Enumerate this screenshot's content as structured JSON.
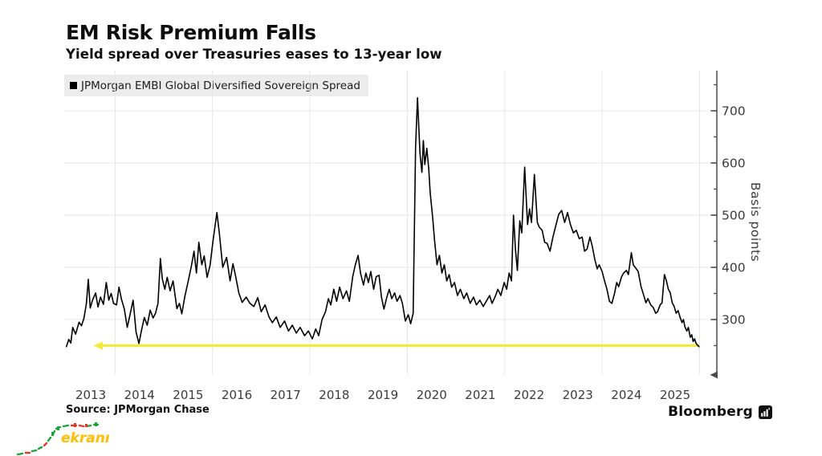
{
  "header": {
    "title": "EM Risk Premium Falls",
    "subtitle": "Yield spread over Treasuries eases to 13-year low"
  },
  "legend": {
    "label": "JPMorgan EMBI Global Diversified Sovereign Spread",
    "marker_color": "#000000",
    "background": "#ececec"
  },
  "footer": {
    "source": "Source: JPMorgan Chase",
    "brand": "Bloomberg"
  },
  "watermark": {
    "text": "ekranı",
    "text_color": "#fdc010",
    "doodle_up_color": "#1fa23c",
    "doodle_down_color": "#e03a2f"
  },
  "chart_data": {
    "type": "line",
    "title": "EM Risk Premium Falls",
    "subtitle": "Yield spread over Treasuries eases to 13-year low",
    "ylabel": "Basis points",
    "xlabel": "",
    "x_unit": "year",
    "xlim": [
      2013.0,
      2026.35
    ],
    "ylim": [
      195,
      775
    ],
    "yticks": [
      300,
      400,
      500,
      600,
      700
    ],
    "yticks_minor": [
      250,
      350,
      450,
      550,
      650,
      750
    ],
    "xticks_labels": [
      "2013",
      "2014",
      "2015",
      "2016",
      "2017",
      "2018",
      "2019",
      "2020",
      "2021",
      "2022",
      "2023",
      "2024",
      "2025"
    ],
    "grid": {
      "color": "#e6e6e6",
      "h_values": [
        300,
        400,
        500,
        600,
        700
      ],
      "v_years": [
        2014,
        2016,
        2018,
        2020,
        2022,
        2024,
        2026
      ]
    },
    "axis_color": "#4a4a4a",
    "tick_label_color": "#3a3a3a",
    "annotation_arrow": {
      "meaning": "spread back down to 13-year-low level",
      "y": 250,
      "x_from": 2026.0,
      "x_to": 2013.55,
      "color": "#f2e93f"
    },
    "series": [
      {
        "name": "JPMorgan EMBI Global Diversified Sovereign Spread",
        "color": "#000000",
        "points": [
          [
            2013.0,
            248
          ],
          [
            2013.05,
            262
          ],
          [
            2013.09,
            255
          ],
          [
            2013.13,
            285
          ],
          [
            2013.19,
            272
          ],
          [
            2013.26,
            295
          ],
          [
            2013.31,
            288
          ],
          [
            2013.36,
            302
          ],
          [
            2013.41,
            330
          ],
          [
            2013.45,
            377
          ],
          [
            2013.49,
            322
          ],
          [
            2013.54,
            338
          ],
          [
            2013.6,
            351
          ],
          [
            2013.65,
            324
          ],
          [
            2013.7,
            343
          ],
          [
            2013.76,
            329
          ],
          [
            2013.82,
            371
          ],
          [
            2013.87,
            337
          ],
          [
            2013.92,
            350
          ],
          [
            2013.97,
            331
          ],
          [
            2014.03,
            328
          ],
          [
            2014.08,
            362
          ],
          [
            2014.13,
            339
          ],
          [
            2014.19,
            320
          ],
          [
            2014.25,
            285
          ],
          [
            2014.31,
            311
          ],
          [
            2014.37,
            337
          ],
          [
            2014.43,
            276
          ],
          [
            2014.49,
            254
          ],
          [
            2014.54,
            278
          ],
          [
            2014.6,
            304
          ],
          [
            2014.66,
            289
          ],
          [
            2014.72,
            318
          ],
          [
            2014.78,
            303
          ],
          [
            2014.83,
            312
          ],
          [
            2014.88,
            331
          ],
          [
            2014.93,
            417
          ],
          [
            2014.97,
            378
          ],
          [
            2015.02,
            358
          ],
          [
            2015.07,
            381
          ],
          [
            2015.13,
            355
          ],
          [
            2015.19,
            374
          ],
          [
            2015.27,
            321
          ],
          [
            2015.32,
            331
          ],
          [
            2015.37,
            311
          ],
          [
            2015.43,
            343
          ],
          [
            2015.5,
            373
          ],
          [
            2015.57,
            404
          ],
          [
            2015.62,
            431
          ],
          [
            2015.67,
            389
          ],
          [
            2015.72,
            448
          ],
          [
            2015.78,
            405
          ],
          [
            2015.83,
            422
          ],
          [
            2015.89,
            381
          ],
          [
            2015.95,
            404
          ],
          [
            2016.01,
            450
          ],
          [
            2016.09,
            505
          ],
          [
            2016.14,
            466
          ],
          [
            2016.21,
            400
          ],
          [
            2016.29,
            419
          ],
          [
            2016.36,
            374
          ],
          [
            2016.42,
            407
          ],
          [
            2016.48,
            381
          ],
          [
            2016.54,
            351
          ],
          [
            2016.61,
            333
          ],
          [
            2016.69,
            343
          ],
          [
            2016.77,
            331
          ],
          [
            2016.85,
            325
          ],
          [
            2016.93,
            342
          ],
          [
            2017.0,
            315
          ],
          [
            2017.08,
            328
          ],
          [
            2017.16,
            305
          ],
          [
            2017.23,
            294
          ],
          [
            2017.31,
            305
          ],
          [
            2017.39,
            285
          ],
          [
            2017.48,
            297
          ],
          [
            2017.56,
            278
          ],
          [
            2017.64,
            289
          ],
          [
            2017.72,
            274
          ],
          [
            2017.8,
            285
          ],
          [
            2017.89,
            269
          ],
          [
            2017.97,
            278
          ],
          [
            2018.05,
            263
          ],
          [
            2018.12,
            282
          ],
          [
            2018.18,
            269
          ],
          [
            2018.25,
            300
          ],
          [
            2018.32,
            315
          ],
          [
            2018.38,
            340
          ],
          [
            2018.43,
            328
          ],
          [
            2018.49,
            358
          ],
          [
            2018.55,
            335
          ],
          [
            2018.61,
            362
          ],
          [
            2018.68,
            340
          ],
          [
            2018.75,
            355
          ],
          [
            2018.81,
            335
          ],
          [
            2018.88,
            382
          ],
          [
            2018.93,
            404
          ],
          [
            2018.99,
            423
          ],
          [
            2019.04,
            389
          ],
          [
            2019.1,
            366
          ],
          [
            2019.15,
            389
          ],
          [
            2019.2,
            371
          ],
          [
            2019.25,
            392
          ],
          [
            2019.31,
            358
          ],
          [
            2019.36,
            382
          ],
          [
            2019.42,
            385
          ],
          [
            2019.47,
            343
          ],
          [
            2019.52,
            320
          ],
          [
            2019.58,
            343
          ],
          [
            2019.63,
            358
          ],
          [
            2019.68,
            340
          ],
          [
            2019.74,
            351
          ],
          [
            2019.79,
            335
          ],
          [
            2019.85,
            346
          ],
          [
            2019.9,
            331
          ],
          [
            2019.96,
            297
          ],
          [
            2020.02,
            309
          ],
          [
            2020.07,
            292
          ],
          [
            2020.12,
            312
          ],
          [
            2020.17,
            630
          ],
          [
            2020.21,
            725
          ],
          [
            2020.26,
            618
          ],
          [
            2020.3,
            582
          ],
          [
            2020.33,
            643
          ],
          [
            2020.36,
            597
          ],
          [
            2020.4,
            628
          ],
          [
            2020.44,
            589
          ],
          [
            2020.47,
            543
          ],
          [
            2020.52,
            497
          ],
          [
            2020.56,
            451
          ],
          [
            2020.61,
            405
          ],
          [
            2020.66,
            423
          ],
          [
            2020.71,
            389
          ],
          [
            2020.76,
            405
          ],
          [
            2020.81,
            374
          ],
          [
            2020.86,
            386
          ],
          [
            2020.91,
            362
          ],
          [
            2020.97,
            371
          ],
          [
            2021.03,
            346
          ],
          [
            2021.09,
            358
          ],
          [
            2021.16,
            340
          ],
          [
            2021.22,
            351
          ],
          [
            2021.29,
            331
          ],
          [
            2021.36,
            343
          ],
          [
            2021.42,
            328
          ],
          [
            2021.49,
            337
          ],
          [
            2021.56,
            325
          ],
          [
            2021.62,
            335
          ],
          [
            2021.69,
            346
          ],
          [
            2021.74,
            331
          ],
          [
            2021.8,
            343
          ],
          [
            2021.86,
            358
          ],
          [
            2021.92,
            346
          ],
          [
            2021.99,
            371
          ],
          [
            2022.04,
            358
          ],
          [
            2022.09,
            389
          ],
          [
            2022.14,
            374
          ],
          [
            2022.18,
            500
          ],
          [
            2022.22,
            435
          ],
          [
            2022.26,
            394
          ],
          [
            2022.31,
            489
          ],
          [
            2022.35,
            466
          ],
          [
            2022.41,
            592
          ],
          [
            2022.47,
            482
          ],
          [
            2022.51,
            512
          ],
          [
            2022.55,
            486
          ],
          [
            2022.61,
            578
          ],
          [
            2022.67,
            486
          ],
          [
            2022.71,
            477
          ],
          [
            2022.77,
            471
          ],
          [
            2022.82,
            448
          ],
          [
            2022.87,
            446
          ],
          [
            2022.93,
            431
          ],
          [
            2022.99,
            458
          ],
          [
            2023.05,
            480
          ],
          [
            2023.11,
            502
          ],
          [
            2023.17,
            509
          ],
          [
            2023.23,
            486
          ],
          [
            2023.29,
            505
          ],
          [
            2023.35,
            482
          ],
          [
            2023.41,
            466
          ],
          [
            2023.47,
            471
          ],
          [
            2023.53,
            455
          ],
          [
            2023.59,
            458
          ],
          [
            2023.64,
            431
          ],
          [
            2023.69,
            435
          ],
          [
            2023.75,
            458
          ],
          [
            2023.8,
            440
          ],
          [
            2023.85,
            415
          ],
          [
            2023.9,
            397
          ],
          [
            2023.94,
            405
          ],
          [
            2024.0,
            392
          ],
          [
            2024.05,
            374
          ],
          [
            2024.1,
            358
          ],
          [
            2024.15,
            335
          ],
          [
            2024.2,
            331
          ],
          [
            2024.25,
            348
          ],
          [
            2024.3,
            371
          ],
          [
            2024.34,
            363
          ],
          [
            2024.4,
            382
          ],
          [
            2024.44,
            389
          ],
          [
            2024.5,
            394
          ],
          [
            2024.54,
            386
          ],
          [
            2024.6,
            428
          ],
          [
            2024.64,
            405
          ],
          [
            2024.68,
            400
          ],
          [
            2024.74,
            392
          ],
          [
            2024.8,
            363
          ],
          [
            2024.85,
            348
          ],
          [
            2024.9,
            332
          ],
          [
            2024.94,
            340
          ],
          [
            2025.0,
            328
          ],
          [
            2025.05,
            323
          ],
          [
            2025.1,
            312
          ],
          [
            2025.14,
            315
          ],
          [
            2025.19,
            328
          ],
          [
            2025.23,
            332
          ],
          [
            2025.28,
            386
          ],
          [
            2025.32,
            374
          ],
          [
            2025.36,
            358
          ],
          [
            2025.4,
            351
          ],
          [
            2025.44,
            332
          ],
          [
            2025.48,
            325
          ],
          [
            2025.52,
            312
          ],
          [
            2025.56,
            317
          ],
          [
            2025.6,
            305
          ],
          [
            2025.64,
            294
          ],
          [
            2025.67,
            300
          ],
          [
            2025.7,
            286
          ],
          [
            2025.74,
            278
          ],
          [
            2025.77,
            285
          ],
          [
            2025.81,
            266
          ],
          [
            2025.84,
            271
          ],
          [
            2025.87,
            258
          ],
          [
            2025.9,
            263
          ],
          [
            2025.93,
            254
          ],
          [
            2025.96,
            251
          ],
          [
            2025.99,
            248
          ]
        ]
      }
    ]
  }
}
